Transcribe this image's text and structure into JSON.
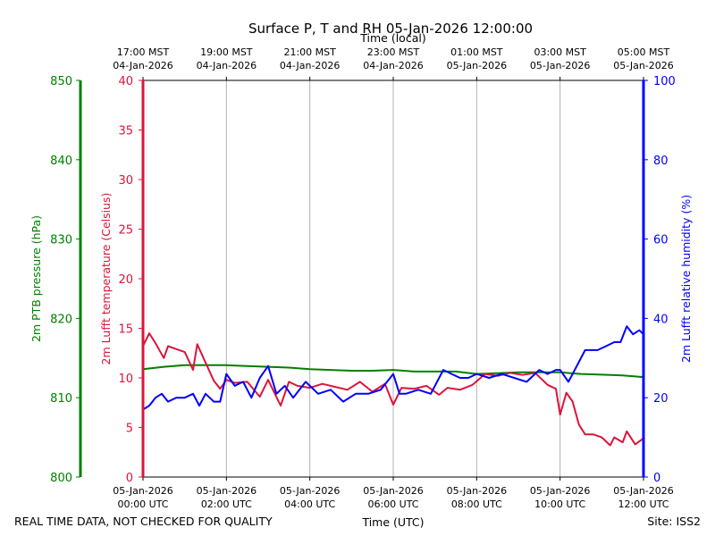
{
  "chart_data": {
    "type": "line",
    "title": "Surface P, T and RH 05-Jan-2026 12:00:00",
    "top_xlabel": "Time (local)",
    "bottom_xlabel": "Time (UTC)",
    "footer_left": "REAL TIME DATA, NOT CHECKED FOR QUALITY",
    "footer_right": "Site: ISS2",
    "xlim": [
      0,
      12
    ],
    "bottom_ticks": [
      {
        "x": 0,
        "date": "05-Jan-2026",
        "time": "00:00 UTC"
      },
      {
        "x": 2,
        "date": "05-Jan-2026",
        "time": "02:00 UTC"
      },
      {
        "x": 4,
        "date": "05-Jan-2026",
        "time": "04:00 UTC"
      },
      {
        "x": 6,
        "date": "05-Jan-2026",
        "time": "06:00 UTC"
      },
      {
        "x": 8,
        "date": "05-Jan-2026",
        "time": "08:00 UTC"
      },
      {
        "x": 10,
        "date": "05-Jan-2026",
        "time": "10:00 UTC"
      },
      {
        "x": 12,
        "date": "05-Jan-2026",
        "time": "12:00 UTC"
      }
    ],
    "top_ticks": [
      {
        "x": 0,
        "time": "17:00 MST",
        "date": "04-Jan-2026"
      },
      {
        "x": 2,
        "time": "19:00 MST",
        "date": "04-Jan-2026"
      },
      {
        "x": 4,
        "time": "21:00 MST",
        "date": "04-Jan-2026"
      },
      {
        "x": 6,
        "time": "23:00 MST",
        "date": "04-Jan-2026"
      },
      {
        "x": 8,
        "time": "01:00 MST",
        "date": "05-Jan-2026"
      },
      {
        "x": 10,
        "time": "03:00 MST",
        "date": "05-Jan-2026"
      },
      {
        "x": 12,
        "time": "05:00 MST",
        "date": "05-Jan-2026"
      }
    ],
    "axes": {
      "pressure": {
        "label": "2m PTB pressure (hPa)",
        "color": "#008000",
        "ylim": [
          800,
          850
        ],
        "ticks": [
          800,
          810,
          820,
          830,
          840,
          850
        ]
      },
      "temperature": {
        "label": "2m Lufft temperature (Celsius)",
        "color": "#dc143c",
        "ylim": [
          0,
          40
        ],
        "ticks": [
          0,
          5,
          10,
          15,
          20,
          25,
          30,
          35,
          40
        ]
      },
      "humidity": {
        "label": "2m Lufft relative humidity (%)",
        "color": "#0000ff",
        "ylim": [
          0,
          100
        ],
        "ticks": [
          0,
          20,
          40,
          60,
          80,
          100
        ]
      }
    },
    "series": [
      {
        "name": "2m PTB pressure (hPa)",
        "axis": "pressure",
        "color": "#008000",
        "x": [
          0,
          0.5,
          1,
          1.5,
          2,
          2.5,
          3,
          3.5,
          4,
          4.5,
          5,
          5.5,
          6,
          6.5,
          7,
          7.5,
          8,
          8.5,
          9,
          9.5,
          10,
          10.5,
          11,
          11.5,
          12
        ],
        "y": [
          813.6,
          813.9,
          814.1,
          814.1,
          814.1,
          814.0,
          813.9,
          813.8,
          813.6,
          813.5,
          813.4,
          813.4,
          813.5,
          813.3,
          813.3,
          813.3,
          813.0,
          813.1,
          813.2,
          813.2,
          813.2,
          813.0,
          812.9,
          812.8,
          812.6
        ]
      },
      {
        "name": "2m Lufft temperature (Celsius)",
        "axis": "temperature",
        "color": "#dc143c",
        "x": [
          0,
          0.15,
          0.3,
          0.5,
          0.6,
          0.8,
          1.0,
          1.2,
          1.3,
          1.45,
          1.7,
          1.85,
          2.0,
          2.2,
          2.5,
          2.8,
          3.0,
          3.3,
          3.5,
          3.7,
          4.0,
          4.3,
          4.6,
          4.9,
          5.2,
          5.5,
          5.8,
          6.0,
          6.2,
          6.5,
          6.8,
          7.1,
          7.3,
          7.6,
          7.9,
          8.2,
          8.5,
          8.8,
          9.1,
          9.4,
          9.7,
          9.9,
          10.0,
          10.15,
          10.3,
          10.45,
          10.6,
          10.8,
          11.0,
          11.2,
          11.3,
          11.5,
          11.6,
          11.8,
          12.0
        ],
        "y": [
          13.2,
          14.5,
          13.5,
          12.0,
          13.2,
          12.9,
          12.6,
          10.8,
          13.4,
          12.0,
          9.7,
          8.9,
          9.8,
          9.5,
          9.6,
          8.1,
          9.8,
          7.2,
          9.6,
          9.2,
          9.0,
          9.4,
          9.1,
          8.8,
          9.6,
          8.6,
          9.4,
          7.3,
          9.0,
          8.9,
          9.2,
          8.3,
          9.0,
          8.8,
          9.3,
          10.4,
          10.2,
          10.5,
          10.3,
          10.5,
          9.3,
          8.9,
          6.3,
          8.5,
          7.6,
          5.3,
          4.3,
          4.3,
          4.0,
          3.2,
          4.0,
          3.5,
          4.6,
          3.3,
          3.9
        ]
      },
      {
        "name": "2m Lufft relative humidity (%)",
        "axis": "humidity",
        "color": "#0000ff",
        "x": [
          0,
          0.15,
          0.3,
          0.45,
          0.6,
          0.8,
          1.0,
          1.2,
          1.35,
          1.5,
          1.7,
          1.85,
          2.0,
          2.2,
          2.4,
          2.6,
          2.8,
          3.0,
          3.2,
          3.4,
          3.6,
          3.9,
          4.2,
          4.5,
          4.8,
          5.1,
          5.4,
          5.7,
          6.0,
          6.15,
          6.3,
          6.6,
          6.9,
          7.2,
          7.4,
          7.6,
          7.8,
          8.0,
          8.3,
          8.6,
          8.9,
          9.2,
          9.5,
          9.7,
          9.9,
          10.0,
          10.2,
          10.3,
          10.6,
          10.9,
          11.1,
          11.3,
          11.45,
          11.6,
          11.75,
          11.9,
          12.0
        ],
        "y": [
          17,
          18,
          20,
          21,
          19,
          20,
          20,
          21,
          18,
          21,
          19,
          19,
          26,
          23,
          24,
          20,
          25,
          28,
          21,
          23,
          20,
          24,
          21,
          22,
          19,
          21,
          21,
          22,
          26,
          21,
          21,
          22,
          21,
          27,
          26,
          25,
          25,
          26,
          25,
          26,
          25,
          24,
          27,
          26,
          27,
          27,
          24,
          26,
          32,
          32,
          33,
          34,
          34,
          38,
          36,
          37,
          36
        ]
      }
    ]
  }
}
